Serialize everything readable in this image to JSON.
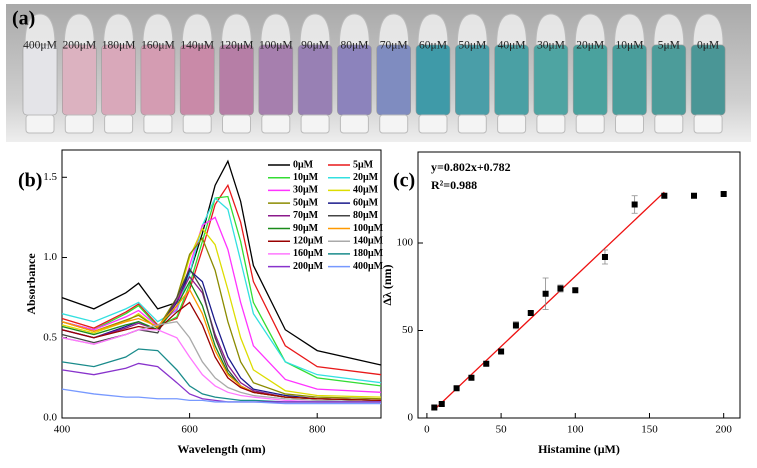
{
  "photo": {
    "label": "(a)",
    "tube_labels": [
      "400μM",
      "200μM",
      "180μM",
      "160μM",
      "140μM",
      "120μM",
      "100μM",
      "90μM",
      "80μM",
      "70μM",
      "60μM",
      "50μM",
      "40μM",
      "30μM",
      "20μM",
      "10μM",
      "5μM",
      "0μM"
    ]
  },
  "chart_data": [
    {
      "type": "line",
      "panel_label": "(b)",
      "x_label": "Wavelength (nm)",
      "y_label": "Absorbance",
      "x": [
        400,
        450,
        500,
        520,
        550,
        580,
        600,
        620,
        640,
        660,
        680,
        700,
        750,
        800,
        900
      ],
      "xlim": [
        400,
        900
      ],
      "xticks": [
        400,
        600,
        800
      ],
      "ylim": [
        0,
        1.67
      ],
      "yticks": [
        {
          "value": 0,
          "label": "0.0"
        },
        0.5,
        {
          "value": 1,
          "label": "1.0"
        },
        1.5
      ],
      "series": [
        {
          "name": "0μM",
          "color": "#000000",
          "values": [
            0.75,
            0.68,
            0.78,
            0.84,
            0.68,
            0.72,
            0.9,
            1.15,
            1.45,
            1.6,
            1.35,
            0.95,
            0.55,
            0.42,
            0.33
          ]
        },
        {
          "name": "5μM",
          "color": "#e8191a",
          "values": [
            0.62,
            0.56,
            0.66,
            0.71,
            0.58,
            0.62,
            0.8,
            1.05,
            1.33,
            1.45,
            1.22,
            0.85,
            0.45,
            0.32,
            0.27
          ]
        },
        {
          "name": "10μM",
          "color": "#33dd33",
          "values": [
            0.6,
            0.55,
            0.65,
            0.7,
            0.57,
            0.63,
            0.83,
            1.1,
            1.37,
            1.38,
            1.1,
            0.72,
            0.35,
            0.25,
            0.2
          ]
        },
        {
          "name": "20μM",
          "color": "#33e0e0",
          "values": [
            0.65,
            0.6,
            0.68,
            0.72,
            0.6,
            0.67,
            0.9,
            1.2,
            1.37,
            1.3,
            0.98,
            0.65,
            0.35,
            0.27,
            0.22
          ]
        },
        {
          "name": "30μM",
          "color": "#ff33ff",
          "values": [
            0.6,
            0.55,
            0.63,
            0.67,
            0.57,
            0.68,
            0.95,
            1.2,
            1.25,
            1.05,
            0.72,
            0.45,
            0.24,
            0.18,
            0.16
          ]
        },
        {
          "name": "40μM",
          "color": "#dddd00",
          "values": [
            0.58,
            0.53,
            0.6,
            0.65,
            0.56,
            0.72,
            1.0,
            1.18,
            1.08,
            0.8,
            0.5,
            0.3,
            0.17,
            0.14,
            0.13
          ]
        },
        {
          "name": "50μM",
          "color": "#8b8b00",
          "values": [
            0.6,
            0.54,
            0.61,
            0.64,
            0.56,
            0.75,
            1.02,
            1.12,
            0.92,
            0.6,
            0.35,
            0.22,
            0.15,
            0.13,
            0.12
          ]
        },
        {
          "name": "60μM",
          "color": "#1a1a8b",
          "values": [
            0.55,
            0.5,
            0.57,
            0.6,
            0.55,
            0.72,
            0.92,
            0.85,
            0.6,
            0.38,
            0.25,
            0.18,
            0.14,
            0.12,
            0.11
          ]
        },
        {
          "name": "70μM",
          "color": "#8b1a8b",
          "values": [
            0.55,
            0.5,
            0.56,
            0.59,
            0.55,
            0.73,
            0.88,
            0.78,
            0.52,
            0.33,
            0.22,
            0.17,
            0.13,
            0.12,
            0.11
          ]
        },
        {
          "name": "80μM",
          "color": "#444444",
          "values": [
            0.52,
            0.47,
            0.52,
            0.55,
            0.53,
            0.75,
            0.93,
            0.8,
            0.5,
            0.3,
            0.2,
            0.16,
            0.13,
            0.12,
            0.11
          ]
        },
        {
          "name": "90μM",
          "color": "#1a8b1a",
          "values": [
            0.57,
            0.52,
            0.58,
            0.6,
            0.55,
            0.7,
            0.85,
            0.7,
            0.45,
            0.28,
            0.2,
            0.16,
            0.13,
            0.12,
            0.11
          ]
        },
        {
          "name": "100μM",
          "color": "#ff9900",
          "values": [
            0.6,
            0.54,
            0.6,
            0.62,
            0.57,
            0.7,
            0.8,
            0.65,
            0.42,
            0.27,
            0.2,
            0.16,
            0.13,
            0.12,
            0.11
          ]
        },
        {
          "name": "120μM",
          "color": "#990000",
          "values": [
            0.55,
            0.5,
            0.55,
            0.57,
            0.55,
            0.66,
            0.72,
            0.58,
            0.38,
            0.25,
            0.19,
            0.16,
            0.13,
            0.12,
            0.11
          ]
        },
        {
          "name": "140μM",
          "color": "#aaaaaa",
          "values": [
            0.5,
            0.46,
            0.52,
            0.55,
            0.58,
            0.6,
            0.5,
            0.35,
            0.25,
            0.19,
            0.16,
            0.14,
            0.12,
            0.11,
            0.1
          ]
        },
        {
          "name": "160μM",
          "color": "#ff77ff",
          "values": [
            0.5,
            0.46,
            0.52,
            0.55,
            0.55,
            0.5,
            0.38,
            0.27,
            0.2,
            0.16,
            0.14,
            0.13,
            0.11,
            0.1,
            0.1
          ]
        },
        {
          "name": "180μM",
          "color": "#1a8b8b",
          "values": [
            0.35,
            0.32,
            0.38,
            0.43,
            0.42,
            0.3,
            0.2,
            0.15,
            0.13,
            0.12,
            0.11,
            0.11,
            0.1,
            0.1,
            0.1
          ]
        },
        {
          "name": "200μM",
          "color": "#8833cc",
          "values": [
            0.3,
            0.27,
            0.31,
            0.34,
            0.32,
            0.22,
            0.15,
            0.12,
            0.11,
            0.1,
            0.1,
            0.1,
            0.1,
            0.1,
            0.1
          ]
        },
        {
          "name": "400μM",
          "color": "#7799ff",
          "values": [
            0.18,
            0.15,
            0.13,
            0.13,
            0.12,
            0.12,
            0.11,
            0.11,
            0.1,
            0.1,
            0.1,
            0.1,
            0.09,
            0.09,
            0.09
          ]
        }
      ]
    },
    {
      "type": "scatter",
      "panel_label": "(c)",
      "x_label": "Histamine (μM)",
      "y_label": "Δλ (nm)",
      "annotations": [
        "y=0.802x+0.782",
        "R²=0.988"
      ],
      "x": [
        5,
        10,
        20,
        30,
        40,
        50,
        60,
        70,
        80,
        90,
        100,
        120,
        140,
        160,
        180,
        200
      ],
      "y": [
        6,
        8,
        17,
        23,
        31,
        38,
        53,
        60,
        71,
        74,
        73,
        92,
        122,
        127,
        127,
        128
      ],
      "errors": [
        1,
        1,
        1,
        1,
        1,
        1,
        2,
        1,
        9,
        2,
        1,
        4,
        5,
        1,
        1,
        1
      ],
      "color": "#000000",
      "fit_color": "#ee1111",
      "fit_x": [
        5,
        160
      ],
      "fit_y": [
        4.79,
        129.1
      ],
      "xlim": [
        -6,
        211
      ],
      "xticks": [
        0,
        50,
        100,
        150,
        200
      ],
      "ylim": [
        0,
        152
      ],
      "yticks": [
        0,
        50,
        100
      ]
    }
  ]
}
